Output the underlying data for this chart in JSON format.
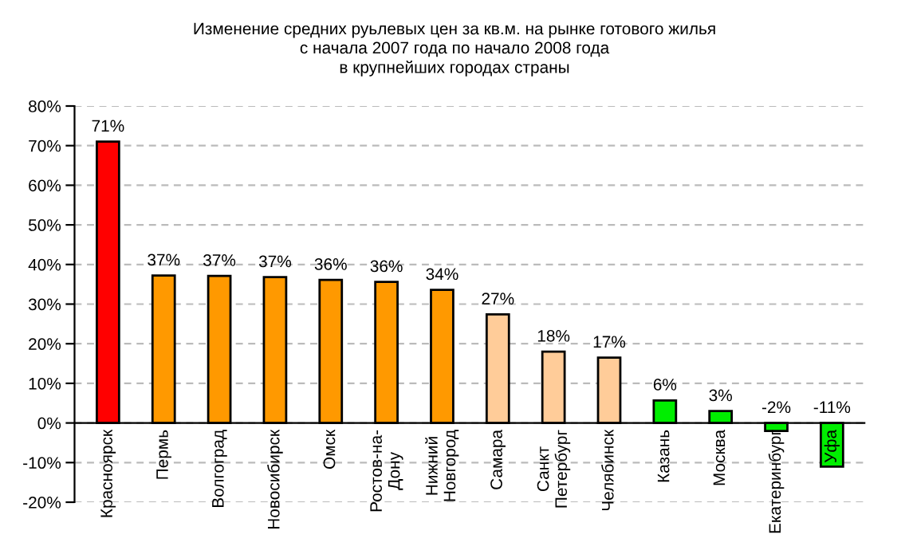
{
  "chart_data": {
    "type": "bar",
    "title": "Изменение средних руьлевых цен за кв.м. на рынке готового жилья\nс начала 2007 года по начало 2008 года\nв крупнейших городах страны",
    "categories": [
      "Красноярск",
      "Пермь",
      "Волгоград",
      "Новосибирск",
      "Омск",
      "Ростов-на-\nДону",
      "Нижний\nНовгород",
      "Самара",
      "Санкт\nПетербург",
      "Челябинск",
      "Казань",
      "Москва",
      "Екатеринбург",
      "Уфа"
    ],
    "values": [
      71,
      37.2,
      37.1,
      36.8,
      36.1,
      35.6,
      33.6,
      27.4,
      18,
      16.5,
      5.7,
      3,
      -2,
      -11
    ],
    "value_labels": [
      "71%",
      "37%",
      "37%",
      "37%",
      "36%",
      "36%",
      "34%",
      "27%",
      "18%",
      "17%",
      "6%",
      "3%",
      "-2%",
      "-11%"
    ],
    "colors": [
      "#ff0000",
      "#ff9900",
      "#ff9900",
      "#ff9900",
      "#ff9900",
      "#ff9900",
      "#ff9900",
      "#ffcc99",
      "#ffcc99",
      "#ffcc99",
      "#00ee00",
      "#00ee00",
      "#00ee00",
      "#00ee00"
    ],
    "ylim": [
      -20,
      80
    ],
    "yticks": [
      {
        "value": -20,
        "label": "-20%"
      },
      {
        "value": -10,
        "label": "-10%"
      },
      {
        "value": 0,
        "label": "0%"
      },
      {
        "value": 10,
        "label": "10%"
      },
      {
        "value": 20,
        "label": "20%"
      },
      {
        "value": 30,
        "label": "30%"
      },
      {
        "value": 40,
        "label": "40%"
      },
      {
        "value": 50,
        "label": "50%"
      },
      {
        "value": 60,
        "label": "60%"
      },
      {
        "value": 70,
        "label": "70%"
      },
      {
        "value": 80,
        "label": "80%"
      }
    ],
    "grid": "y"
  }
}
